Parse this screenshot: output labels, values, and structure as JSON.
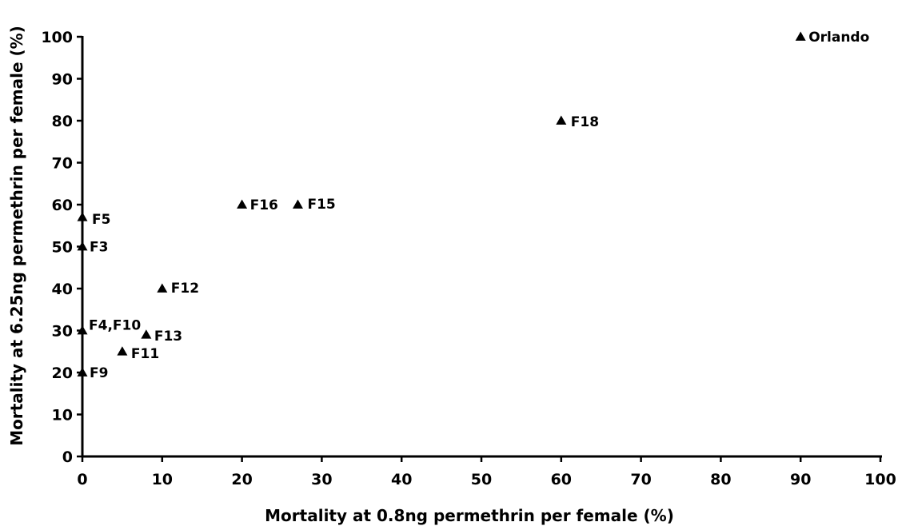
{
  "chart_data": {
    "type": "scatter",
    "title": "",
    "xlabel": "Mortality at 0.8ng permethrin per female (%)",
    "ylabel": "Mortality at 6.25ng permethrin per female (%)",
    "xlim": [
      0,
      100
    ],
    "ylim": [
      0,
      100
    ],
    "xticks": [
      "0",
      "10",
      "20",
      "30",
      "40",
      "50",
      "60",
      "70",
      "80",
      "90",
      "100"
    ],
    "yticks": [
      "0",
      "10",
      "20",
      "30",
      "40",
      "50",
      "60",
      "70",
      "80",
      "90",
      "100"
    ],
    "grid": false,
    "marker": "triangle",
    "marker_color": "#000000",
    "points": [
      {
        "label": "Orlando",
        "x": 90,
        "y": 100
      },
      {
        "label": "F18",
        "x": 60,
        "y": 80
      },
      {
        "label": "F16",
        "x": 20,
        "y": 60
      },
      {
        "label": "F15",
        "x": 27,
        "y": 60
      },
      {
        "label": "F5",
        "x": 0,
        "y": 57
      },
      {
        "label": "F3",
        "x": 0,
        "y": 50
      },
      {
        "label": "F12",
        "x": 10,
        "y": 40
      },
      {
        "label": "F13",
        "x": 8,
        "y": 29
      },
      {
        "label": "F11",
        "x": 5,
        "y": 25
      },
      {
        "label": "F9",
        "x": 0,
        "y": 20
      },
      {
        "label": "F4,F10",
        "x": 0,
        "y": 30
      }
    ]
  }
}
